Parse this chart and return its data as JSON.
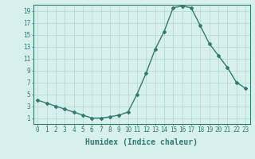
{
  "x": [
    0,
    1,
    2,
    3,
    4,
    5,
    6,
    7,
    8,
    9,
    10,
    11,
    12,
    13,
    14,
    15,
    16,
    17,
    18,
    19,
    20,
    21,
    22,
    23
  ],
  "y": [
    4.0,
    3.5,
    3.0,
    2.5,
    2.0,
    1.5,
    1.0,
    1.0,
    1.2,
    1.5,
    2.0,
    5.0,
    8.5,
    12.5,
    15.5,
    19.5,
    19.8,
    19.5,
    16.5,
    13.5,
    11.5,
    9.5,
    7.0,
    6.0
  ],
  "line_color": "#2e7d6e",
  "marker": "D",
  "marker_size": 2,
  "bg_color": "#d7f0ed",
  "grid_color": "#b0d8d2",
  "xlabel": "Humidex (Indice chaleur)",
  "xlim": [
    -0.5,
    23.5
  ],
  "ylim": [
    0,
    20
  ],
  "xticks": [
    0,
    1,
    2,
    3,
    4,
    5,
    6,
    7,
    8,
    9,
    10,
    11,
    12,
    13,
    14,
    15,
    16,
    17,
    18,
    19,
    20,
    21,
    22,
    23
  ],
  "yticks": [
    1,
    3,
    5,
    7,
    9,
    11,
    13,
    15,
    17,
    19
  ],
  "tick_color": "#2e7d6e",
  "tick_fontsize": 5.5,
  "xlabel_fontsize": 7,
  "spine_color": "#2e7d6e"
}
